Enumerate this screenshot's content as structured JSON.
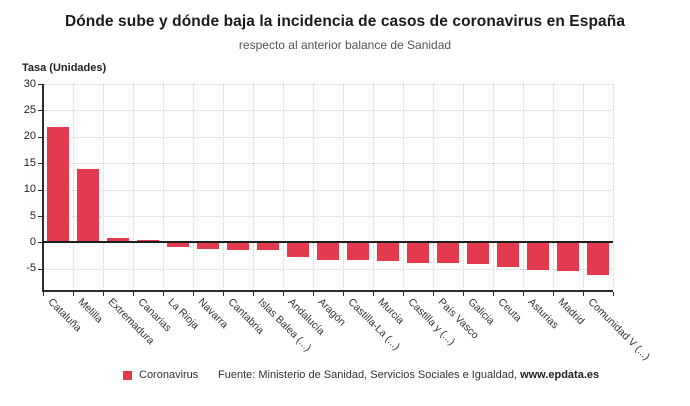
{
  "header": {
    "title": "Dónde sube y dónde baja la incidencia de casos de coronavirus en España",
    "subtitle": "respecto al anterior balance de Sanidad"
  },
  "legend": {
    "label": "Coronavirus",
    "color": "#e33b4d"
  },
  "footer": {
    "source_prefix": "Fuente: Ministerio de Sanidad, Servicios Sociales e Igualdad, ",
    "source_link": "www.epdata.es"
  },
  "chart_data": {
    "type": "bar",
    "title": "Dónde sube y dónde baja la incidencia de casos de coronavirus en España",
    "subtitle": "respecto al anterior balance de Sanidad",
    "ylabel": "Tasa (Unidades)",
    "xlabel": "",
    "series_name": "Coronavirus",
    "categories": [
      "Cataluña",
      "Melilla",
      "Extremadura",
      "Canarias",
      "La Rioja",
      "Navarra",
      "Cantabria",
      "Islas Balea (...)",
      "Andalucía",
      "Aragón",
      "Castilla-La (...)",
      "Murcia",
      "Castilla y (...)",
      "País Vasco",
      "Galicia",
      "Ceuta",
      "Asturias",
      "Madrid",
      "Comunidad V (...)"
    ],
    "values": [
      21.8,
      13.9,
      0.9,
      0.5,
      -0.9,
      -1.3,
      -1.4,
      -1.5,
      -2.8,
      -3.3,
      -3.4,
      -3.6,
      -3.8,
      -3.8,
      -4.1,
      -4.6,
      -5.3,
      -5.4,
      -6.1
    ],
    "yticks": [
      30,
      25,
      20,
      15,
      10,
      5,
      0,
      -5
    ],
    "ylim": [
      -9,
      30
    ],
    "grid": true,
    "legend_position": "bottom-left",
    "bar_color": "#e33b4d",
    "gridline_color": "#d4d4d4",
    "axis_color": "#2b2b2b"
  }
}
